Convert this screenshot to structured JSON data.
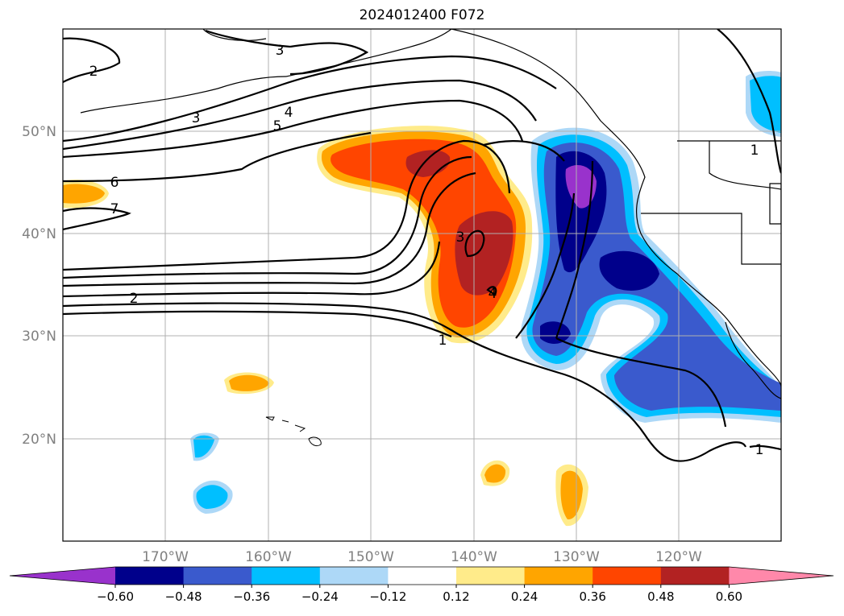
{
  "title": "2024012400 F072",
  "lat_ticks": [
    "50°N",
    "40°N",
    "30°N",
    "20°N"
  ],
  "lon_ticks": [
    "170°W",
    "160°W",
    "150°W",
    "140°W",
    "130°W",
    "120°W"
  ],
  "contour_labels": {
    "c2_nw": "2",
    "c3_top": "3",
    "c3": "3",
    "c4": "4",
    "c5": "5",
    "c6": "6",
    "c7": "7",
    "c2_s": "2",
    "c1": "1",
    "c3_core": "3",
    "c4_core": "4",
    "c1_ne": "1",
    "c1_se": "1"
  },
  "colorbar": {
    "ticks": [
      "−0.60",
      "−0.48",
      "−0.36",
      "−0.24",
      "−0.12",
      "0.12",
      "0.24",
      "0.36",
      "0.48",
      "0.60"
    ],
    "colors": [
      "#9932cc",
      "#00008b",
      "#3a5acd",
      "#00bfff",
      "#add8f7",
      "#ffffff",
      "#ffeb8a",
      "#ffa500",
      "#ff4500",
      "#b22222",
      "#ff88aa"
    ]
  }
}
